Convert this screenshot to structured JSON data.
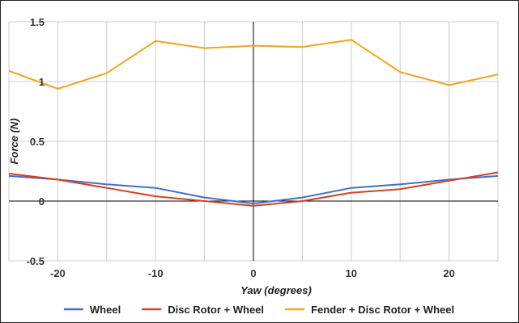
{
  "chart_data": {
    "type": "line",
    "title": "",
    "xlabel": "Yaw (degrees)",
    "ylabel": "Force (N)",
    "xlim": [
      -25,
      25
    ],
    "ylim": [
      -0.5,
      1.5
    ],
    "x_ticks": [
      -20,
      -10,
      0,
      10,
      20
    ],
    "x_tick_labels": [
      "-20",
      "-10",
      "0",
      "10",
      "20"
    ],
    "y_ticks": [
      -0.5,
      0,
      0.5,
      1,
      1.5
    ],
    "y_tick_labels": [
      "-0.5",
      "0",
      "0.5",
      "1",
      "1.5"
    ],
    "x_grid_step": 5,
    "grid": true,
    "legend_position": "bottom",
    "x": [
      -25,
      -20,
      -15,
      -10,
      -5,
      0,
      5,
      10,
      15,
      20,
      25
    ],
    "series": [
      {
        "name": "Wheel",
        "color": "#3f6fd1",
        "values": [
          0.21,
          0.18,
          0.14,
          0.11,
          0.03,
          -0.02,
          0.03,
          0.11,
          0.14,
          0.18,
          0.21
        ]
      },
      {
        "name": "Disc Rotor + Wheel",
        "color": "#d7401f",
        "values": [
          0.23,
          0.18,
          0.11,
          0.04,
          0.0,
          -0.04,
          0.0,
          0.07,
          0.1,
          0.17,
          0.24
        ]
      },
      {
        "name": "Fender + Disc Rotor + Wheel",
        "color": "#f5a31a",
        "values": [
          1.09,
          0.94,
          1.07,
          1.34,
          1.28,
          1.3,
          1.29,
          1.35,
          1.08,
          0.97,
          1.06
        ]
      }
    ]
  }
}
